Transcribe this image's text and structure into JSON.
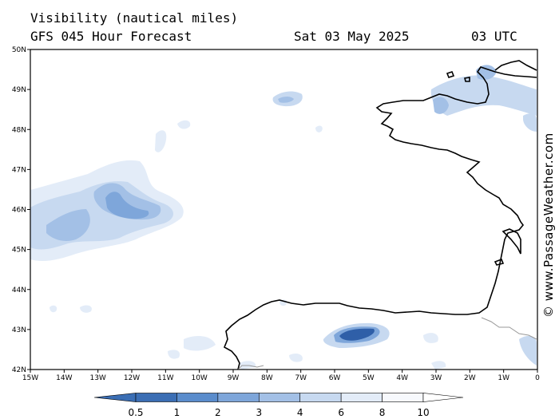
{
  "header": {
    "title": "Visibility (nautical miles)",
    "model": "GFS 045 Hour Forecast",
    "date": "Sat 03 May 2025",
    "time": "03 UTC"
  },
  "credit": "© www.PassageWeather.com",
  "map": {
    "lat_labels": [
      "50N",
      "49N",
      "48N",
      "47N",
      "46N",
      "45N",
      "44N",
      "43N",
      "42N"
    ],
    "lon_labels": [
      "15W",
      "14W",
      "13W",
      "12W",
      "11W",
      "10W",
      "9W",
      "8W",
      "7W",
      "6W",
      "5W",
      "4W",
      "3W",
      "2W",
      "1W",
      "0"
    ],
    "lat_range": [
      42,
      50
    ],
    "lon_range": [
      -15,
      0
    ]
  },
  "legend": {
    "labels": [
      "0.5",
      "1",
      "2",
      "3",
      "4",
      "6",
      "8",
      "10"
    ],
    "colors": [
      "#3b6eb4",
      "#5a8ccc",
      "#7ea6da",
      "#a3c0e6",
      "#c7d9f0",
      "#e3ecf8",
      "#f7f9fd"
    ]
  },
  "colors": {
    "land_outline": "#000000",
    "border": "#999999",
    "dark_fog": "#2f5fa8",
    "medium_fog": "#7ea6da",
    "light_fog": "#c7d9f0"
  }
}
